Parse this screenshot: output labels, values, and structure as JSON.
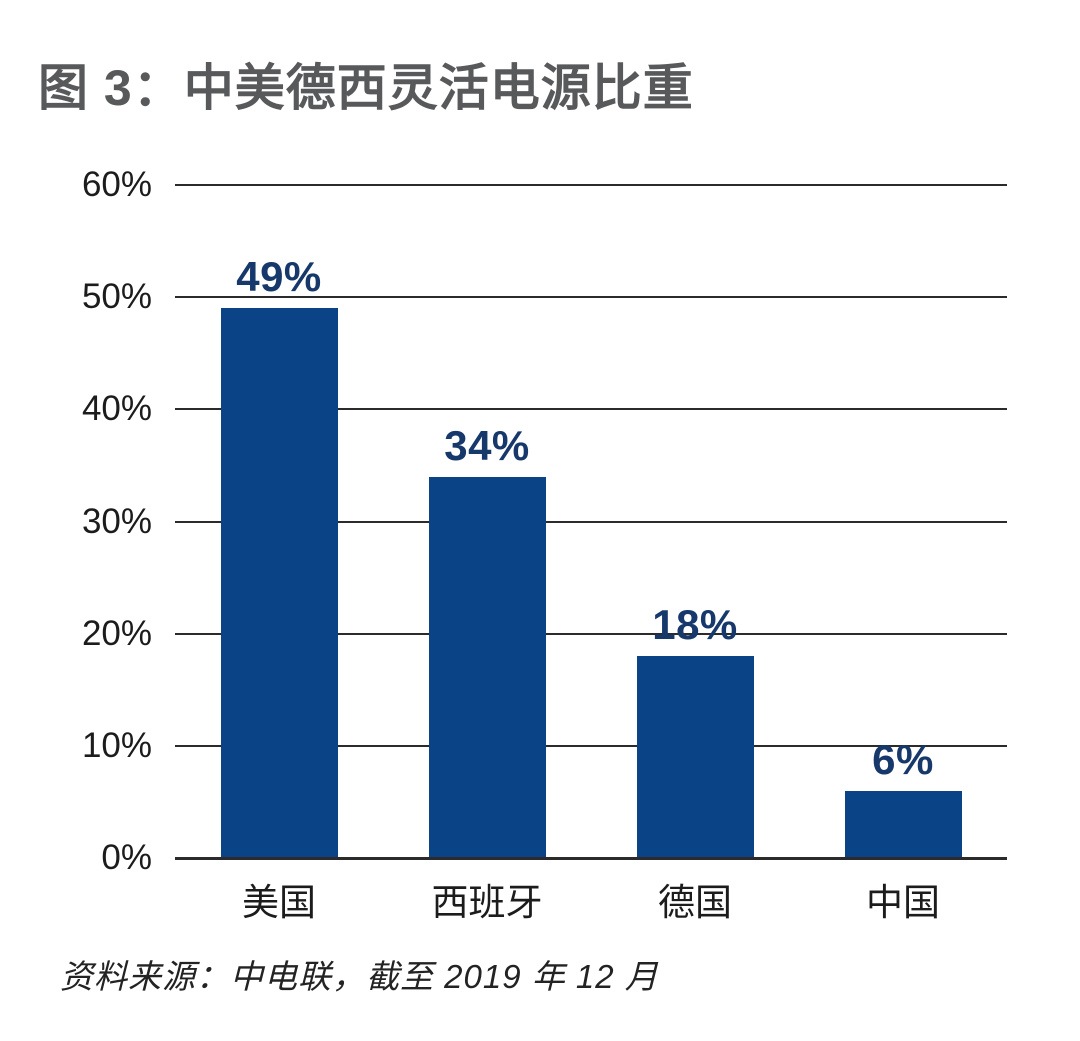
{
  "title": "图 3：中美德西灵活电源比重",
  "source": "资料来源：中电联，截至 2019 年 12 月",
  "chart_data": {
    "type": "bar",
    "title": "图 3：中美德西灵活电源比重",
    "categories": [
      "美国",
      "西班牙",
      "德国",
      "中国"
    ],
    "values": [
      49,
      34,
      18,
      6
    ],
    "value_labels": [
      "49%",
      "34%",
      "18%",
      "6%"
    ],
    "xlabel": "",
    "ylabel": "",
    "ylim": [
      0,
      60
    ],
    "ytick_values": [
      60,
      50,
      40,
      30,
      20,
      10,
      0
    ],
    "ytick_labels": [
      "60%",
      "50%",
      "40%",
      "30%",
      "20%",
      "10%",
      "0%"
    ],
    "grid": true,
    "legend": false,
    "bar_color": "#0a4486",
    "value_label_color": "#17386b",
    "title_color": "#58595b",
    "axis_color": "#2b2b2b",
    "source_note": "资料来源：中电联，截至 2019 年 12 月"
  }
}
